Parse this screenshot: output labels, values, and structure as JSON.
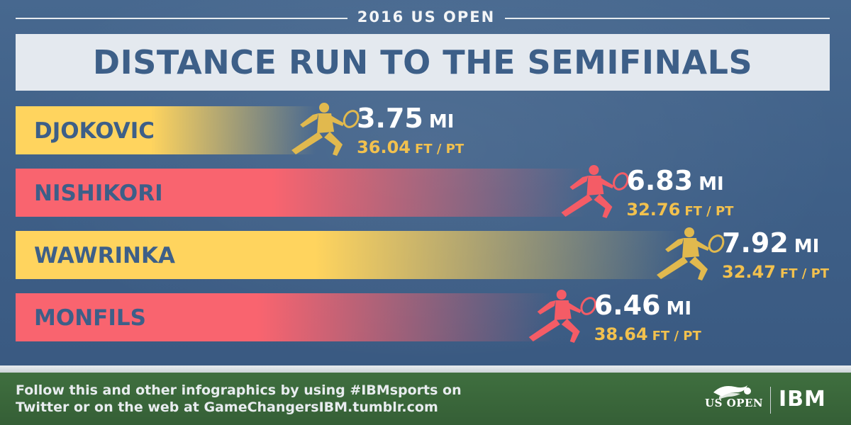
{
  "header": {
    "supertitle": "2016 US OPEN",
    "title": "DISTANCE RUN TO THE SEMIFINALS"
  },
  "chart_data": {
    "type": "bar",
    "orientation": "horizontal",
    "title": "DISTANCE RUN TO THE SEMIFINALS",
    "categories": [
      "DJOKOVIC",
      "NISHIKORI",
      "WAWRINKA",
      "MONFILS"
    ],
    "values": [
      3.75,
      6.83,
      7.92,
      6.46
    ],
    "value_unit": "MI",
    "secondary_values": [
      36.04,
      32.76,
      32.47,
      38.64
    ],
    "secondary_unit_main": "FT",
    "secondary_unit_sep": "/",
    "secondary_unit_tail": "PT",
    "bar_colors": [
      "#ffd45e",
      "#f9646f",
      "#ffd45e",
      "#f9646f"
    ],
    "player_icon_colors": [
      "#e1b94e",
      "#f45c66",
      "#e1b94e",
      "#f45c66"
    ],
    "xlim": [
      0,
      7.92
    ],
    "grid": false,
    "legend": "none"
  },
  "footer": {
    "line1": "Follow this and other infographics by using #IBMsports on",
    "line2": "Twitter or on the web at GameChangersIBM.tumblr.com",
    "usopen_logo_text": "US OPEN",
    "ibm_logo_text": "IBM"
  },
  "colors": {
    "court": "#3f6189",
    "banner": "#e4e9ef",
    "title_text": "#3d5f88",
    "grass": "#3a6a3b",
    "accent_yellow": "#f2c14e"
  },
  "icons": {
    "player": "tennis-player-icon",
    "usopen": "us-open-logo-icon",
    "ibm": "ibm-logo-icon"
  }
}
